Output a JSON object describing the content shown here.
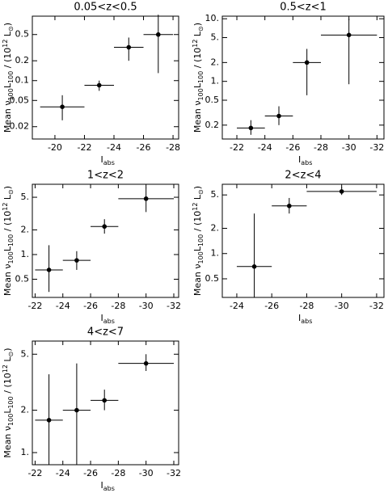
{
  "chart_data": [
    {
      "type": "errorbar",
      "title": "0.05<z<0.5",
      "xlabel": [
        "I",
        "abs"
      ],
      "ylabel": [
        "Mean ν",
        "100",
        "L",
        "100",
        " / (10",
        "12",
        " L",
        "⊙",
        ")"
      ],
      "ylog": true,
      "color": "#000000",
      "xlim": [
        -18.47,
        -28.38
      ],
      "ylim": [
        0.013,
        0.95
      ],
      "xticks": [
        -20,
        -22,
        -24,
        -26,
        -28
      ],
      "yticks": [
        0.02,
        0.05,
        0.1,
        0.2,
        0.5
      ],
      "x": [
        -20.5,
        -23,
        -25,
        -27
      ],
      "values": [
        0.04,
        0.085,
        0.32,
        0.5
      ],
      "x_low": [
        -19,
        -22,
        -24,
        -26
      ],
      "x_high": [
        -22,
        -24,
        -26,
        -28
      ],
      "y_low": [
        0.025,
        0.07,
        0.2,
        0.13
      ],
      "y_high": [
        0.06,
        0.1,
        0.45,
        1.0
      ]
    },
    {
      "type": "errorbar",
      "title": "0.5<z<1",
      "xlabel": [
        "I",
        "abs"
      ],
      "ylabel": [
        "Mean ν",
        "100",
        "L",
        "100",
        " / (10",
        "12",
        " L",
        "⊙",
        ")"
      ],
      "ylog": true,
      "color": "#000000",
      "xlim": [
        -20.96,
        -32.5
      ],
      "ylim": [
        0.12,
        11
      ],
      "xticks": [
        -22,
        -24,
        -26,
        -28,
        -30,
        -32
      ],
      "yticks": [
        0.2,
        0.5,
        {
          "value": 1,
          "label": "1."
        },
        {
          "value": 2,
          "label": "2."
        },
        {
          "value": 5,
          "label": "5."
        },
        {
          "value": 10,
          "label": "10."
        }
      ],
      "x": [
        -23,
        -25,
        -27,
        -30
      ],
      "values": [
        0.18,
        0.28,
        2,
        5.5
      ],
      "x_low": [
        -22,
        -24,
        -26,
        -28
      ],
      "x_high": [
        -24,
        -26,
        -28,
        -32
      ],
      "y_low": [
        0.14,
        0.2,
        0.6,
        0.9
      ],
      "y_high": [
        0.24,
        0.4,
        3.3,
        10
      ]
    },
    {
      "type": "errorbar",
      "title": "1<z<2",
      "xlabel": [
        "I",
        "abs"
      ],
      "ylabel": [
        "Mean ν",
        "100",
        "L",
        "100",
        " / (10",
        "12",
        " L",
        "⊙",
        ")"
      ],
      "ylog": true,
      "color": "#000000",
      "xlim": [
        -21.8,
        -32.35
      ],
      "ylim": [
        0.3,
        7.2
      ],
      "xticks": [
        -22,
        -24,
        -26,
        -28,
        -30,
        -32
      ],
      "yticks": [
        0.5,
        {
          "value": 1,
          "label": "1."
        },
        {
          "value": 2,
          "label": "2."
        },
        {
          "value": 5,
          "label": "5."
        }
      ],
      "x": [
        -23,
        -25,
        -27,
        -30
      ],
      "values": [
        0.65,
        0.85,
        2.2,
        4.8
      ],
      "x_low": [
        -22,
        -24,
        -26,
        -28
      ],
      "x_high": [
        -24,
        -26,
        -28,
        -32
      ],
      "y_low": [
        0.35,
        0.65,
        1.8,
        3.3
      ],
      "y_high": [
        1.3,
        1.1,
        2.7,
        6.5
      ]
    },
    {
      "type": "errorbar",
      "title": "2<z<4",
      "xlabel": [
        "I",
        "abs"
      ],
      "ylabel": [
        "Mean ν",
        "100",
        "L",
        "100",
        " / (10",
        "12",
        " L",
        "⊙",
        ")"
      ],
      "ylog": true,
      "color": "#000000",
      "xlim": [
        -23.17,
        -32.42
      ],
      "ylim": [
        0.3,
        6.7
      ],
      "xticks": [
        -24,
        -26,
        -28,
        -30,
        -32
      ],
      "yticks": [
        0.5,
        {
          "value": 1,
          "label": "1."
        },
        {
          "value": 2,
          "label": "2."
        },
        {
          "value": 5,
          "label": "5."
        }
      ],
      "x": [
        -25,
        -27,
        -30
      ],
      "values": [
        0.7,
        3.7,
        5.5
      ],
      "x_low": [
        -24,
        -26,
        -28
      ],
      "x_high": [
        -26,
        -28,
        -32
      ],
      "y_low": [
        0.3,
        3,
        5
      ],
      "y_high": [
        3,
        4.6,
        6.2
      ]
    },
    {
      "type": "errorbar",
      "title": "4<z<7",
      "xlabel": [
        "I",
        "abs"
      ],
      "ylabel": [
        "Mean ν",
        "100",
        "L",
        "100",
        " / (10",
        "12",
        " L",
        "⊙",
        ")"
      ],
      "ylog": true,
      "color": "#000000",
      "xlim": [
        -21.8,
        -32.35
      ],
      "ylim": [
        0.82,
        6.2
      ],
      "xticks": [
        -22,
        -24,
        -26,
        -28,
        -30,
        -32
      ],
      "yticks": [
        {
          "value": 1,
          "label": "1."
        },
        {
          "value": 2,
          "label": "2."
        },
        {
          "value": 5,
          "label": "5."
        }
      ],
      "x": [
        -23,
        -25,
        -27,
        -30
      ],
      "values": [
        1.7,
        2.0,
        2.35,
        4.3
      ],
      "x_low": [
        -22,
        -24,
        -26,
        -28
      ],
      "x_high": [
        -24,
        -26,
        -28,
        -32
      ],
      "y_low": [
        0.82,
        0.82,
        2.0,
        3.8
      ],
      "y_high": [
        3.6,
        4.3,
        2.8,
        5
      ]
    }
  ]
}
